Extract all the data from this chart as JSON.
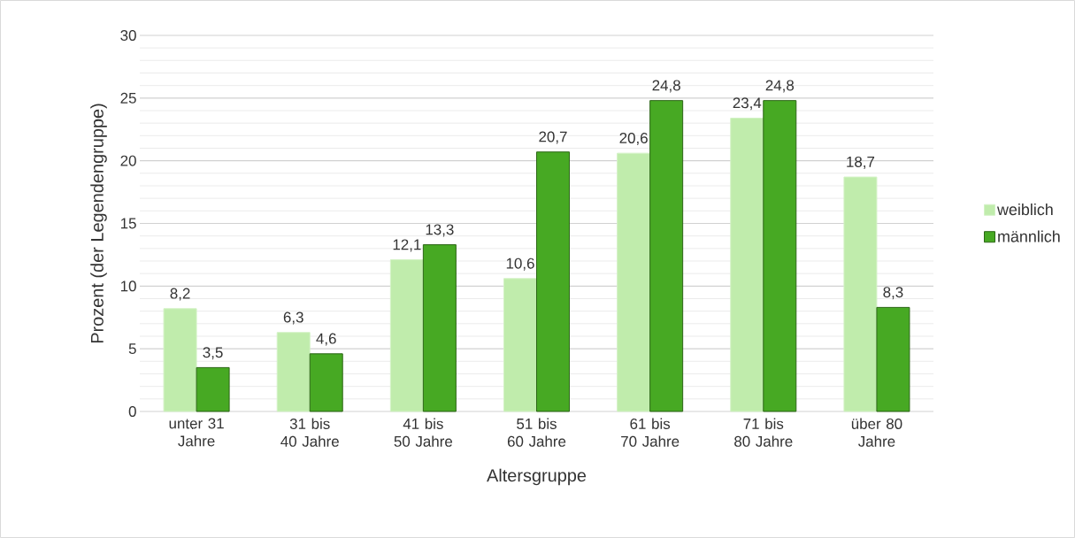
{
  "chart_data": {
    "type": "bar",
    "xlabel": "Altersgruppe",
    "ylabel": "Prozent (der Legendengruppe)",
    "categories": [
      "unter 31 Jahre",
      "31 bis 40 Jahre",
      "41 bis 50 Jahre",
      "51 bis 60 Jahre",
      "61 bis 70 Jahre",
      "71 bis 80 Jahre",
      "über 80 Jahre"
    ],
    "series": [
      {
        "name": "weiblich",
        "color": "#c0ecac",
        "values": [
          8.2,
          6.3,
          12.1,
          10.6,
          20.6,
          23.4,
          18.7
        ],
        "value_labels": [
          "8,2",
          "6,3",
          "12,1",
          "10,6",
          "20,6",
          "23,4",
          "18,7"
        ]
      },
      {
        "name": "männlich",
        "color": "#47a923",
        "values": [
          3.5,
          4.6,
          13.3,
          20.7,
          24.8,
          24.8,
          8.3
        ],
        "value_labels": [
          "3,5",
          "4,6",
          "13,3",
          "20,7",
          "24,8",
          "24,8",
          "8,3"
        ]
      }
    ],
    "ylim": [
      0,
      30
    ],
    "yticks": [
      0,
      5,
      10,
      15,
      20,
      25,
      30
    ],
    "grid": "y",
    "legend": "right"
  }
}
